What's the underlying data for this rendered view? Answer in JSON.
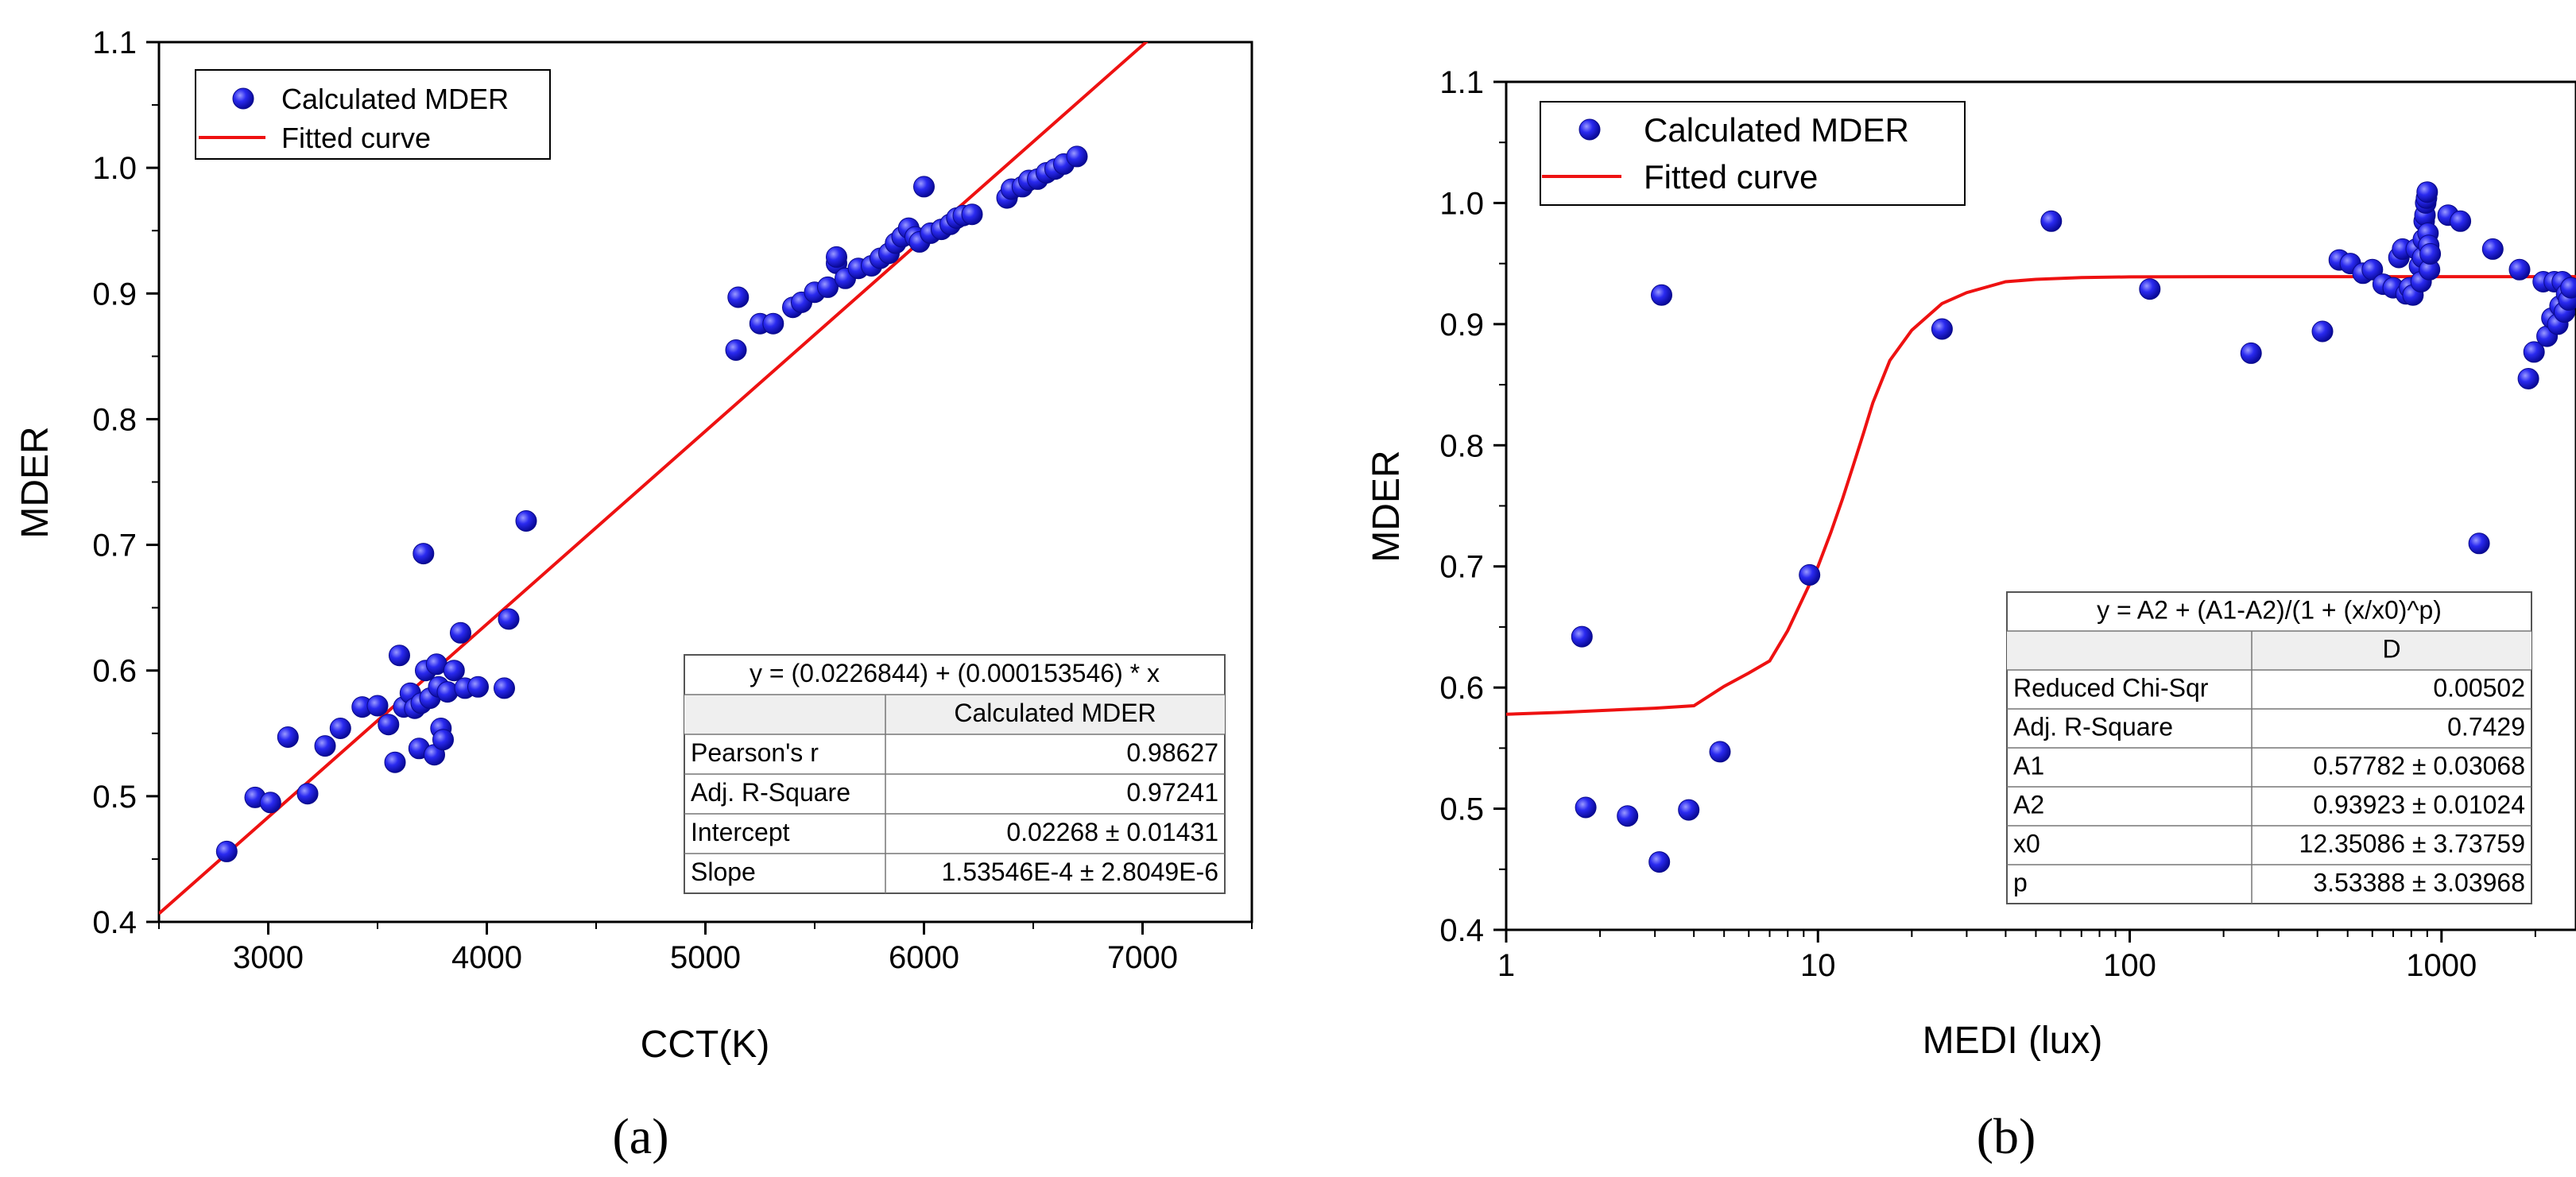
{
  "panels": [
    {
      "panel_label": "(a)",
      "chart_data": {
        "type": "scatter",
        "xlabel": "CCT(K)",
        "ylabel": "MDER",
        "xlim": [
          2500,
          7500
        ],
        "ylim": [
          0.4,
          1.1
        ],
        "xscale": "linear",
        "xticks": [
          3000,
          4000,
          5000,
          6000,
          7000
        ],
        "xtick_labels": [
          "3000",
          "4000",
          "5000",
          "6000",
          "7000"
        ],
        "yticks": [
          0.4,
          0.5,
          0.6,
          0.7,
          0.8,
          0.9,
          1.0,
          1.1
        ],
        "ytick_labels": [
          "0.4",
          "0.5",
          "0.6",
          "0.7",
          "0.8",
          "0.9",
          "1.0",
          "1.1"
        ],
        "legend": {
          "position": "top-left",
          "scatter_label": "Calculated MDER",
          "line_label": "Fitted curve"
        },
        "series": [
          {
            "name": "Calculated MDER",
            "kind": "scatter",
            "color": "#1a1aee",
            "x": [
              2810,
              2940,
              3010,
              3090,
              3180,
              3260,
              3330,
              3430,
              3500,
              3550,
              3580,
              3600,
              3620,
              3650,
              3670,
              3690,
              3700,
              3720,
              3740,
              3760,
              3770,
              3780,
              3790,
              3800,
              3820,
              3850,
              3880,
              3900,
              3960,
              4080,
              4100,
              4180,
              3710,
              5140,
              5150,
              5250,
              5310,
              5400,
              5440,
              5500,
              5560,
              5600,
              5600,
              5640,
              5700,
              5760,
              5800,
              5840,
              5870,
              5900,
              5930,
              5960,
              5980,
              6000,
              6030,
              6080,
              6120,
              6150,
              6180,
              6220,
              6380,
              6400,
              6450,
              6480,
              6520,
              6560,
              6600,
              6640,
              6700
            ],
            "y": [
              0.456,
              0.499,
              0.495,
              0.547,
              0.502,
              0.54,
              0.554,
              0.571,
              0.572,
              0.557,
              0.527,
              0.612,
              0.571,
              0.582,
              0.57,
              0.538,
              0.574,
              0.6,
              0.578,
              0.533,
              0.605,
              0.587,
              0.554,
              0.545,
              0.583,
              0.6,
              0.63,
              0.586,
              0.587,
              0.586,
              0.641,
              0.719,
              0.693,
              0.855,
              0.897,
              0.876,
              0.876,
              0.889,
              0.893,
              0.901,
              0.905,
              0.924,
              0.929,
              0.912,
              0.92,
              0.922,
              0.928,
              0.932,
              0.94,
              0.945,
              0.952,
              0.945,
              0.941,
              0.985,
              0.948,
              0.951,
              0.955,
              0.96,
              0.962,
              0.963,
              0.976,
              0.983,
              0.985,
              0.99,
              0.991,
              0.996,
              0.999,
              1.003,
              1.009
            ]
          },
          {
            "name": "Fitted curve",
            "kind": "line",
            "color": "#ee1111",
            "x": [
              2500,
              7100
            ],
            "y": [
              0.4066,
              1.1129
            ]
          }
        ],
        "fit_table": {
          "equation": "y = (0.0226844) + (0.000153546) * x",
          "column_header": "Calculated MDER",
          "rows": [
            {
              "label": "Pearson's r",
              "value": "0.98627"
            },
            {
              "label": "Adj. R-Square",
              "value": "0.97241"
            },
            {
              "label": "Intercept",
              "value": "0.02268 ± 0.01431"
            },
            {
              "label": "Slope",
              "value": "1.53546E-4 ± 2.8049E-6"
            }
          ]
        }
      }
    },
    {
      "panel_label": "(b)",
      "chart_data": {
        "type": "scatter",
        "xlabel": "MEDI (lux)",
        "ylabel": "MDER",
        "xlim": [
          1,
          2700
        ],
        "ylim": [
          0.4,
          1.1
        ],
        "xscale": "log",
        "xticks": [
          1,
          10,
          100,
          1000
        ],
        "xtick_labels": [
          "1",
          "10",
          "100",
          "1000"
        ],
        "yticks": [
          0.4,
          0.5,
          0.6,
          0.7,
          0.8,
          0.9,
          1.0,
          1.1
        ],
        "ytick_labels": [
          "0.4",
          "0.5",
          "0.6",
          "0.7",
          "0.8",
          "0.9",
          "1.0",
          "1.1"
        ],
        "legend": {
          "position": "top-left",
          "scatter_label": "Calculated MDER",
          "line_label": "Fitted curve"
        },
        "series": [
          {
            "name": "Calculated MDER",
            "kind": "scatter",
            "color": "#1a1aee",
            "x": [
              1.75,
              1.8,
              2.45,
              3.1,
              3.15,
              3.85,
              4.85,
              9.4,
              25,
              56,
              116,
              245,
              415,
              470,
              510,
              560,
              600,
              650,
              700,
              730,
              750,
              770,
              790,
              810,
              830,
              850,
              860,
              870,
              875,
              880,
              885,
              890,
              895,
              900,
              905,
              910,
              915,
              920,
              1050,
              1150,
              1320,
              1460,
              1780,
              1900,
              1980,
              2120,
              2180,
              2260,
              2300,
              2360,
              2400,
              2440,
              2480,
              2520,
              2560,
              2600
            ],
            "y": [
              0.642,
              0.501,
              0.494,
              0.456,
              0.924,
              0.499,
              0.547,
              0.693,
              0.896,
              0.985,
              0.929,
              0.876,
              0.894,
              0.953,
              0.95,
              0.942,
              0.945,
              0.933,
              0.93,
              0.955,
              0.962,
              0.925,
              0.93,
              0.924,
              0.962,
              0.948,
              0.935,
              0.955,
              0.97,
              0.985,
              0.99,
              1.0,
              1.004,
              1.009,
              0.975,
              0.965,
              0.945,
              0.958,
              0.99,
              0.985,
              0.719,
              0.962,
              0.945,
              0.855,
              0.877,
              0.935,
              0.89,
              0.905,
              0.935,
              0.9,
              0.915,
              0.935,
              0.91,
              0.925,
              0.92,
              0.93
            ]
          },
          {
            "name": "Fitted curve",
            "kind": "line",
            "color": "#ee1111",
            "x": [
              1,
              1.5,
              2,
              3,
              4,
              5,
              6,
              7,
              8,
              9,
              10,
              11,
              12,
              13,
              14,
              15,
              17,
              20,
              25,
              30,
              40,
              50,
              70,
              100,
              200,
              500,
              1000,
              2700
            ],
            "y": [
              0.578,
              0.5795,
              0.581,
              0.583,
              0.585,
              0.601,
              0.612,
              0.622,
              0.647,
              0.675,
              0.7,
              0.728,
              0.756,
              0.784,
              0.81,
              0.835,
              0.87,
              0.895,
              0.917,
              0.926,
              0.935,
              0.937,
              0.9385,
              0.939,
              0.9392,
              0.9392,
              0.9392,
              0.9392
            ]
          }
        ],
        "fit_table": {
          "equation": "y = A2 + (A1-A2)/(1 + (x/x0)^p)",
          "column_header": "D",
          "rows": [
            {
              "label": "Reduced Chi-Sqr",
              "value": "0.00502"
            },
            {
              "label": "Adj. R-Square",
              "value": "0.7429"
            },
            {
              "label": "A1",
              "value": "0.57782 ± 0.03068"
            },
            {
              "label": "A2",
              "value": "0.93923 ± 0.01024"
            },
            {
              "label": "x0",
              "value": "12.35086 ± 3.73759"
            },
            {
              "label": "p",
              "value": "3.53388 ± 3.03968"
            }
          ]
        }
      }
    }
  ]
}
